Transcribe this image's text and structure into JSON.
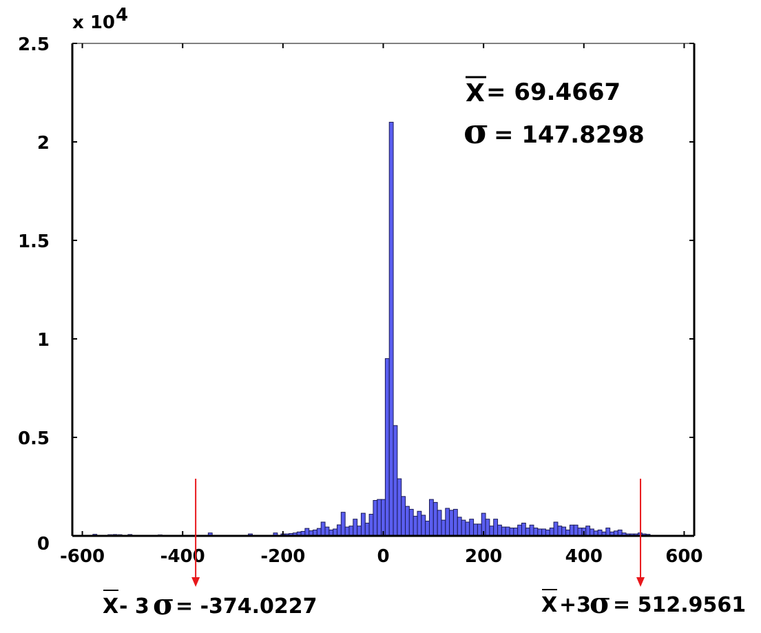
{
  "chart_data": {
    "type": "bar",
    "title": "",
    "xlabel": "",
    "ylabel": "",
    "y_multiplier_label": "x 10",
    "y_multiplier_exponent": "4",
    "xlim": [
      -620,
      620
    ],
    "ylim": [
      0,
      25000
    ],
    "x_ticks": [
      -600,
      -400,
      -200,
      0,
      200,
      400,
      600
    ],
    "y_ticks": [
      0,
      0.5,
      1,
      1.5,
      2,
      2.5
    ],
    "x_tick_labels": [
      "-600",
      "-400",
      "-200",
      "0",
      "200",
      "400",
      "600"
    ],
    "y_tick_labels": [
      "0",
      "0.5",
      "1",
      "1.5",
      "2",
      "2.5"
    ],
    "bin_width": 8,
    "bins": [
      [
        -575,
        80
      ],
      [
        -545,
        60
      ],
      [
        -535,
        70
      ],
      [
        -525,
        60
      ],
      [
        -505,
        70
      ],
      [
        -445,
        50
      ],
      [
        -345,
        150
      ],
      [
        -265,
        100
      ],
      [
        -215,
        150
      ],
      [
        -200,
        100
      ],
      [
        -192,
        100
      ],
      [
        -184,
        120
      ],
      [
        -176,
        150
      ],
      [
        -168,
        200
      ],
      [
        -160,
        230
      ],
      [
        -152,
        380
      ],
      [
        -144,
        260
      ],
      [
        -136,
        300
      ],
      [
        -128,
        380
      ],
      [
        -120,
        700
      ],
      [
        -112,
        450
      ],
      [
        -104,
        300
      ],
      [
        -96,
        350
      ],
      [
        -88,
        560
      ],
      [
        -80,
        1200
      ],
      [
        -72,
        450
      ],
      [
        -64,
        500
      ],
      [
        -56,
        850
      ],
      [
        -48,
        500
      ],
      [
        -40,
        1150
      ],
      [
        -32,
        650
      ],
      [
        -24,
        1100
      ],
      [
        -16,
        1800
      ],
      [
        -8,
        1850
      ],
      [
        0,
        1850
      ],
      [
        8,
        9000
      ],
      [
        16,
        21000
      ],
      [
        24,
        5600
      ],
      [
        32,
        2900
      ],
      [
        40,
        2000
      ],
      [
        48,
        1500
      ],
      [
        56,
        1350
      ],
      [
        64,
        1000
      ],
      [
        72,
        1250
      ],
      [
        80,
        1050
      ],
      [
        88,
        750
      ],
      [
        96,
        1850
      ],
      [
        104,
        1700
      ],
      [
        112,
        1300
      ],
      [
        120,
        800
      ],
      [
        128,
        1400
      ],
      [
        136,
        1300
      ],
      [
        144,
        1350
      ],
      [
        152,
        950
      ],
      [
        160,
        800
      ],
      [
        168,
        700
      ],
      [
        176,
        850
      ],
      [
        184,
        600
      ],
      [
        192,
        600
      ],
      [
        200,
        1150
      ],
      [
        208,
        850
      ],
      [
        216,
        500
      ],
      [
        224,
        850
      ],
      [
        232,
        550
      ],
      [
        240,
        450
      ],
      [
        248,
        450
      ],
      [
        256,
        400
      ],
      [
        264,
        400
      ],
      [
        272,
        550
      ],
      [
        280,
        650
      ],
      [
        288,
        400
      ],
      [
        296,
        550
      ],
      [
        304,
        400
      ],
      [
        312,
        350
      ],
      [
        320,
        350
      ],
      [
        328,
        300
      ],
      [
        336,
        400
      ],
      [
        344,
        700
      ],
      [
        352,
        500
      ],
      [
        360,
        450
      ],
      [
        368,
        300
      ],
      [
        376,
        550
      ],
      [
        384,
        550
      ],
      [
        392,
        400
      ],
      [
        400,
        400
      ],
      [
        408,
        500
      ],
      [
        416,
        350
      ],
      [
        424,
        250
      ],
      [
        432,
        300
      ],
      [
        440,
        200
      ],
      [
        448,
        400
      ],
      [
        456,
        200
      ],
      [
        464,
        250
      ],
      [
        472,
        300
      ],
      [
        480,
        150
      ],
      [
        488,
        100
      ],
      [
        496,
        100
      ],
      [
        504,
        100
      ],
      [
        512,
        150
      ],
      [
        520,
        100
      ],
      [
        528,
        80
      ]
    ],
    "annotations": {
      "mean_label": "X",
      "mean_text": " = 69.4667",
      "sigma_label": "σ",
      "sigma_text": " = 147.8298",
      "lower_x": -374.0227,
      "upper_x": 512.9561,
      "lower_bar": "X",
      "lower_prefix": "- 3",
      "lower_sigma": "σ",
      "lower_text": " = -374.0227",
      "upper_bar": "X",
      "upper_prefix": "+3",
      "upper_sigma": "σ",
      "upper_text": " = 512.9561"
    },
    "colors": {
      "bar_fill": "#5a5ef0",
      "bar_stroke": "#1a1a55",
      "arrow": "#e8171b",
      "axis": "#000000"
    },
    "grid": false,
    "legend": "none"
  }
}
